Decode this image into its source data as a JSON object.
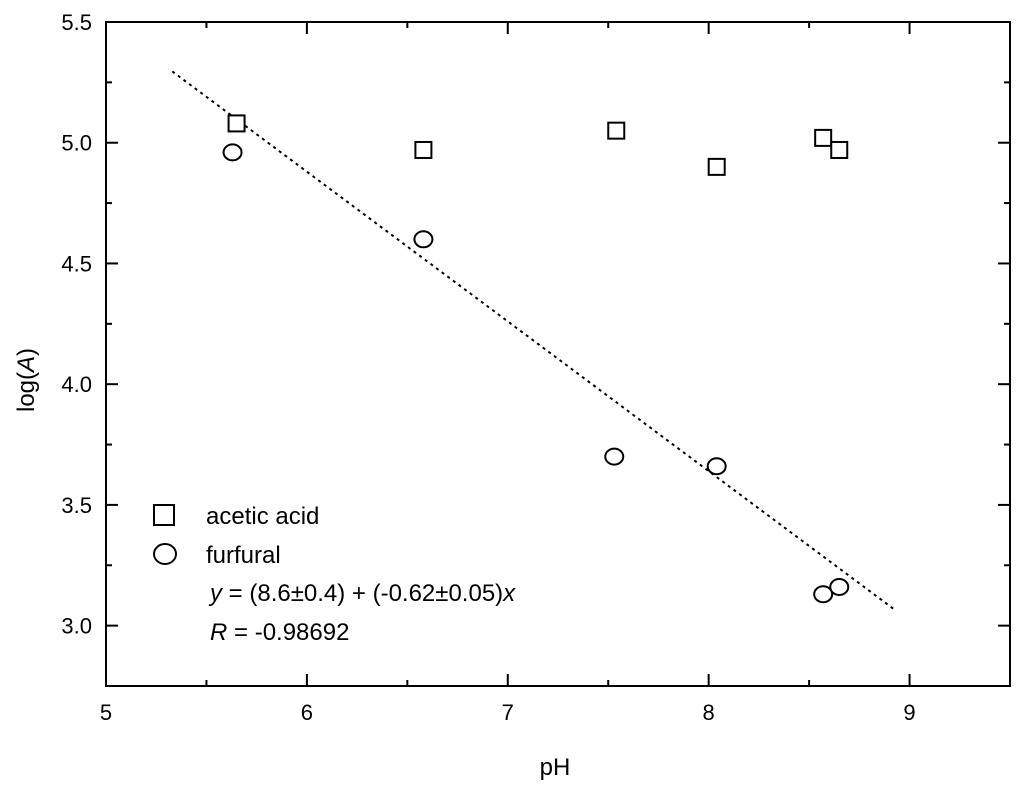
{
  "chart_data": {
    "type": "scatter",
    "title": "",
    "xlabel": "pH",
    "ylabel_prefix": "log(",
    "ylabel_var": "A",
    "ylabel_suffix": ")",
    "xlim": [
      5,
      9.5
    ],
    "ylim": [
      2.75,
      5.5
    ],
    "x_ticks": [
      5,
      6,
      7,
      8,
      9
    ],
    "x_tick_labels": [
      "5",
      "6",
      "7",
      "8",
      "9"
    ],
    "y_ticks": [
      3.0,
      3.5,
      4.0,
      4.5,
      5.0,
      5.5
    ],
    "y_tick_labels": [
      "3.0",
      "3.5",
      "4.0",
      "4.5",
      "5.0",
      "5.5"
    ],
    "grid": false,
    "legend_position": "bottom-left",
    "series": [
      {
        "name": "acetic acid",
        "marker": "square",
        "points": [
          {
            "x": 5.65,
            "y": 5.08
          },
          {
            "x": 6.58,
            "y": 4.97
          },
          {
            "x": 7.54,
            "y": 5.05
          },
          {
            "x": 8.04,
            "y": 4.9
          },
          {
            "x": 8.57,
            "y": 5.02
          },
          {
            "x": 8.65,
            "y": 4.97
          }
        ]
      },
      {
        "name": "furfural",
        "marker": "circle",
        "points": [
          {
            "x": 5.63,
            "y": 4.96
          },
          {
            "x": 6.58,
            "y": 4.6
          },
          {
            "x": 7.53,
            "y": 3.7
          },
          {
            "x": 8.04,
            "y": 3.66
          },
          {
            "x": 8.57,
            "y": 3.13
          },
          {
            "x": 8.65,
            "y": 3.16
          }
        ]
      }
    ],
    "fit_line": {
      "style": "dotted",
      "x_start": 5.33,
      "x_end": 8.93,
      "intercept": 8.6,
      "slope": -0.62
    },
    "annotations": {
      "equation_var_y": "y",
      "equation_middle": " = (8.6±0.4) + (-0.62±0.05)",
      "equation_var_x": "x",
      "r_var": "R",
      "r_text": " = -0.98692"
    }
  }
}
